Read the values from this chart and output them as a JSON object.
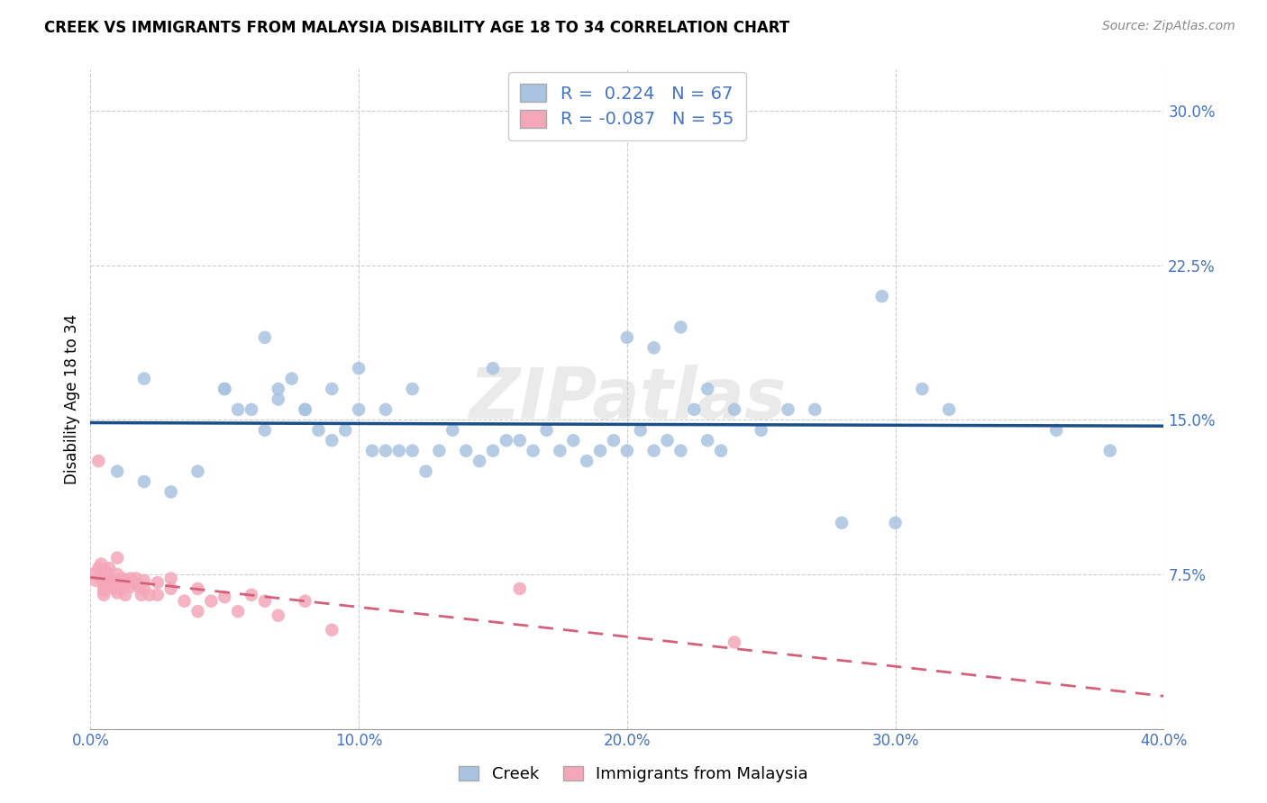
{
  "title": "CREEK VS IMMIGRANTS FROM MALAYSIA DISABILITY AGE 18 TO 34 CORRELATION CHART",
  "source": "Source: ZipAtlas.com",
  "tick_color": "#4472c4",
  "ylabel": "Disability Age 18 to 34",
  "xlim": [
    0.0,
    0.4
  ],
  "ylim": [
    0.0,
    0.32
  ],
  "xticks": [
    0.0,
    0.1,
    0.2,
    0.3,
    0.4
  ],
  "yticks": [
    0.075,
    0.15,
    0.225,
    0.3
  ],
  "xticklabels": [
    "0.0%",
    "10.0%",
    "20.0%",
    "30.0%",
    "40.0%"
  ],
  "yticklabels": [
    "7.5%",
    "15.0%",
    "22.5%",
    "30.0%"
  ],
  "creek_R": 0.224,
  "creek_N": 67,
  "malaysia_R": -0.087,
  "malaysia_N": 55,
  "creek_color": "#a8c4e0",
  "creek_line_color": "#1a4f8a",
  "malaysia_color": "#f4a7b9",
  "malaysia_line_color": "#d4607a",
  "watermark": "ZIPatlas",
  "legend_creek_label": "Creek",
  "legend_malaysia_label": "Immigrants from Malaysia",
  "creek_scatter_x": [
    0.02,
    0.05,
    0.06,
    0.065,
    0.07,
    0.075,
    0.08,
    0.085,
    0.09,
    0.095,
    0.1,
    0.105,
    0.11,
    0.115,
    0.12,
    0.125,
    0.13,
    0.135,
    0.14,
    0.145,
    0.15,
    0.155,
    0.16,
    0.165,
    0.17,
    0.175,
    0.18,
    0.185,
    0.19,
    0.195,
    0.2,
    0.205,
    0.21,
    0.215,
    0.22,
    0.225,
    0.23,
    0.235,
    0.24,
    0.25,
    0.26,
    0.28,
    0.3,
    0.32,
    0.36,
    0.38,
    0.01,
    0.02,
    0.03,
    0.04,
    0.05,
    0.055,
    0.065,
    0.07,
    0.08,
    0.09,
    0.1,
    0.11,
    0.12,
    0.15,
    0.2,
    0.21,
    0.22,
    0.23,
    0.27,
    0.295,
    0.31
  ],
  "creek_scatter_y": [
    0.17,
    0.165,
    0.155,
    0.145,
    0.16,
    0.17,
    0.155,
    0.145,
    0.14,
    0.145,
    0.155,
    0.135,
    0.135,
    0.135,
    0.135,
    0.125,
    0.135,
    0.145,
    0.135,
    0.13,
    0.135,
    0.14,
    0.14,
    0.135,
    0.145,
    0.135,
    0.14,
    0.13,
    0.135,
    0.14,
    0.135,
    0.145,
    0.135,
    0.14,
    0.135,
    0.155,
    0.14,
    0.135,
    0.155,
    0.145,
    0.155,
    0.1,
    0.1,
    0.155,
    0.145,
    0.135,
    0.125,
    0.12,
    0.115,
    0.125,
    0.165,
    0.155,
    0.19,
    0.165,
    0.155,
    0.165,
    0.175,
    0.155,
    0.165,
    0.175,
    0.19,
    0.185,
    0.195,
    0.165,
    0.155,
    0.21,
    0.165
  ],
  "malaysia_scatter_x": [
    0.001,
    0.002,
    0.003,
    0.004,
    0.004,
    0.005,
    0.005,
    0.005,
    0.005,
    0.005,
    0.005,
    0.006,
    0.006,
    0.007,
    0.007,
    0.008,
    0.009,
    0.009,
    0.01,
    0.01,
    0.01,
    0.01,
    0.01,
    0.012,
    0.012,
    0.013,
    0.013,
    0.014,
    0.015,
    0.015,
    0.016,
    0.017,
    0.018,
    0.019,
    0.02,
    0.02,
    0.022,
    0.025,
    0.025,
    0.03,
    0.03,
    0.035,
    0.04,
    0.04,
    0.045,
    0.05,
    0.055,
    0.06,
    0.065,
    0.07,
    0.08,
    0.09,
    0.16,
    0.24,
    0.003
  ],
  "malaysia_scatter_y": [
    0.075,
    0.072,
    0.078,
    0.073,
    0.08,
    0.076,
    0.074,
    0.071,
    0.069,
    0.067,
    0.065,
    0.076,
    0.073,
    0.078,
    0.071,
    0.069,
    0.072,
    0.068,
    0.075,
    0.072,
    0.069,
    0.066,
    0.083,
    0.073,
    0.068,
    0.072,
    0.065,
    0.071,
    0.073,
    0.069,
    0.071,
    0.073,
    0.069,
    0.065,
    0.072,
    0.068,
    0.065,
    0.071,
    0.065,
    0.068,
    0.073,
    0.062,
    0.068,
    0.057,
    0.062,
    0.064,
    0.057,
    0.065,
    0.062,
    0.055,
    0.062,
    0.048,
    0.068,
    0.042,
    0.13
  ]
}
